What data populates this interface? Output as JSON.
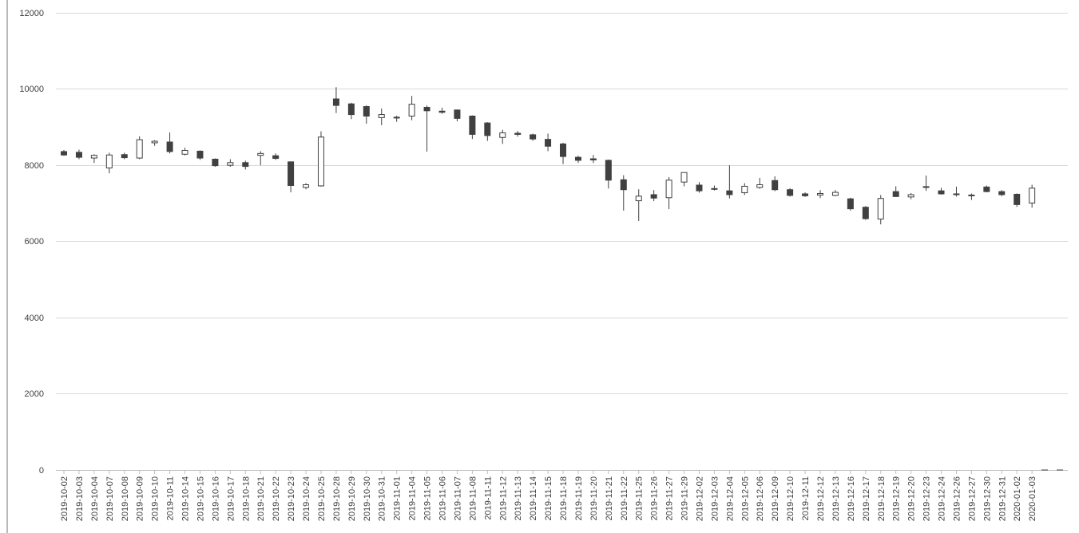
{
  "chart_data": {
    "type": "candlestick",
    "ylim": [
      0,
      12000
    ],
    "yticks": [
      0,
      2000,
      4000,
      6000,
      8000,
      10000,
      12000
    ],
    "grid": true,
    "legend": "none",
    "colors": {
      "up_fill": "#ffffff",
      "down_fill": "#404040",
      "outline": "#404040",
      "grid": "#d9d9d9"
    },
    "categories": [
      "2019-10-02",
      "2019-10-03",
      "2019-10-04",
      "2019-10-07",
      "2019-10-08",
      "2019-10-09",
      "2019-10-10",
      "2019-10-11",
      "2019-10-14",
      "2019-10-15",
      "2019-10-16",
      "2019-10-17",
      "2019-10-18",
      "2019-10-21",
      "2019-10-22",
      "2019-10-23",
      "2019-10-24",
      "2019-10-25",
      "2019-10-28",
      "2019-10-29",
      "2019-10-30",
      "2019-10-31",
      "2019-11-01",
      "2019-11-04",
      "2019-11-05",
      "2019-11-06",
      "2019-11-07",
      "2019-11-08",
      "2019-11-11",
      "2019-11-12",
      "2019-11-13",
      "2019-11-14",
      "2019-11-15",
      "2019-11-18",
      "2019-11-19",
      "2019-11-20",
      "2019-11-21",
      "2019-11-22",
      "2019-11-25",
      "2019-11-26",
      "2019-11-27",
      "2019-11-29",
      "2019-12-02",
      "2019-12-03",
      "2019-12-04",
      "2019-12-05",
      "2019-12-06",
      "2019-12-09",
      "2019-12-10",
      "2019-12-11",
      "2019-12-12",
      "2019-12-13",
      "2019-12-16",
      "2019-12-17",
      "2019-12-18",
      "2019-12-19",
      "2019-12-20",
      "2019-12-23",
      "2019-12-24",
      "2019-12-26",
      "2019-12-27",
      "2019-12-30",
      "2019-12-31",
      "2020-01-02",
      "2020-01-03"
    ],
    "ohlc": [
      [
        8350,
        8390,
        8240,
        8260
      ],
      [
        8330,
        8400,
        8150,
        8200
      ],
      [
        8180,
        8280,
        8050,
        8250
      ],
      [
        7920,
        8320,
        7780,
        8260
      ],
      [
        8270,
        8320,
        8150,
        8190
      ],
      [
        8180,
        8750,
        8150,
        8660
      ],
      [
        8580,
        8650,
        8500,
        8620
      ],
      [
        8600,
        8850,
        8300,
        8350
      ],
      [
        8280,
        8450,
        8250,
        8380
      ],
      [
        8360,
        8380,
        8130,
        8180
      ],
      [
        8150,
        8170,
        7950,
        7980
      ],
      [
        7990,
        8150,
        7950,
        8060
      ],
      [
        8060,
        8110,
        7880,
        7960
      ],
      [
        8250,
        8360,
        7990,
        8300
      ],
      [
        8240,
        8300,
        8130,
        8170
      ],
      [
        8080,
        8090,
        7280,
        7460
      ],
      [
        7410,
        7520,
        7360,
        7480
      ],
      [
        7450,
        8880,
        7430,
        8730
      ],
      [
        9730,
        10040,
        9360,
        9560
      ],
      [
        9600,
        9630,
        9200,
        9320
      ],
      [
        9530,
        9560,
        9080,
        9280
      ],
      [
        9240,
        9480,
        9040,
        9320
      ],
      [
        9240,
        9290,
        9130,
        9250
      ],
      [
        9280,
        9810,
        9170,
        9590
      ],
      [
        9510,
        9560,
        8350,
        9420
      ],
      [
        9410,
        9500,
        9340,
        9380
      ],
      [
        9440,
        9450,
        9140,
        9220
      ],
      [
        9280,
        9300,
        8680,
        8800
      ],
      [
        9100,
        9120,
        8630,
        8770
      ],
      [
        8720,
        8920,
        8550,
        8840
      ],
      [
        8830,
        8890,
        8740,
        8800
      ],
      [
        8790,
        8820,
        8630,
        8680
      ],
      [
        8670,
        8820,
        8360,
        8490
      ],
      [
        8550,
        8580,
        8020,
        8220
      ],
      [
        8200,
        8240,
        8050,
        8120
      ],
      [
        8160,
        8260,
        8050,
        8130
      ],
      [
        8120,
        8140,
        7380,
        7600
      ],
      [
        7610,
        7730,
        6800,
        7350
      ],
      [
        7060,
        7360,
        6530,
        7180
      ],
      [
        7220,
        7340,
        7050,
        7130
      ],
      [
        7140,
        7680,
        6840,
        7600
      ],
      [
        7550,
        7800,
        7440,
        7800
      ],
      [
        7470,
        7550,
        7270,
        7320
      ],
      [
        7380,
        7460,
        7330,
        7370
      ],
      [
        7320,
        7990,
        7120,
        7220
      ],
      [
        7270,
        7520,
        7210,
        7440
      ],
      [
        7410,
        7660,
        7370,
        7480
      ],
      [
        7590,
        7700,
        7310,
        7350
      ],
      [
        7350,
        7390,
        7170,
        7200
      ],
      [
        7240,
        7280,
        7160,
        7190
      ],
      [
        7210,
        7340,
        7130,
        7250
      ],
      [
        7200,
        7340,
        7180,
        7280
      ],
      [
        7110,
        7140,
        6800,
        6850
      ],
      [
        6890,
        6920,
        6560,
        6590
      ],
      [
        6580,
        7210,
        6440,
        7120
      ],
      [
        7300,
        7440,
        7160,
        7170
      ],
      [
        7160,
        7260,
        7100,
        7220
      ],
      [
        7410,
        7720,
        7320,
        7430
      ],
      [
        7320,
        7400,
        7220,
        7240
      ],
      [
        7240,
        7430,
        7170,
        7230
      ],
      [
        7200,
        7250,
        7080,
        7210
      ],
      [
        7420,
        7460,
        7280,
        7300
      ],
      [
        7300,
        7340,
        7180,
        7220
      ],
      [
        7230,
        7250,
        6900,
        6960
      ],
      [
        7000,
        7480,
        6880,
        7390
      ]
    ]
  }
}
